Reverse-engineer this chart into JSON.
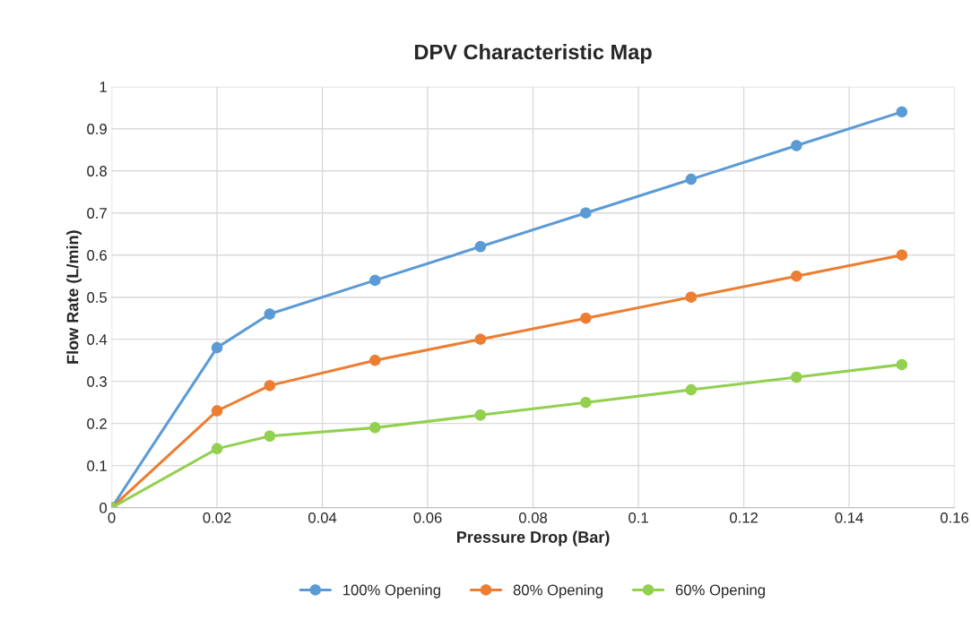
{
  "chart_data": {
    "type": "line",
    "title": "DPV Characteristic Map",
    "xlabel": "Pressure Drop (Bar)",
    "ylabel": "Flow Rate (L/min)",
    "x": [
      0,
      0.02,
      0.03,
      0.05,
      0.07,
      0.09,
      0.11,
      0.13,
      0.15
    ],
    "series": [
      {
        "name": "100% Opening",
        "color": "#5b9bd5",
        "values": [
          0,
          0.38,
          0.46,
          0.54,
          0.62,
          0.7,
          0.78,
          0.86,
          0.94
        ]
      },
      {
        "name": "80% Opening",
        "color": "#ed7d31",
        "values": [
          0,
          0.23,
          0.29,
          0.35,
          0.4,
          0.45,
          0.5,
          0.55,
          0.6
        ]
      },
      {
        "name": "60% Opening",
        "color": "#92d050",
        "values": [
          0,
          0.14,
          0.17,
          0.19,
          0.22,
          0.25,
          0.28,
          0.31,
          0.34
        ]
      }
    ],
    "xlim": [
      0,
      0.16
    ],
    "xticks": [
      0,
      0.02,
      0.04,
      0.06,
      0.08,
      0.1,
      0.12,
      0.14,
      0.16
    ],
    "ylim": [
      0,
      1
    ],
    "yticks": [
      0,
      0.1,
      0.2,
      0.3,
      0.4,
      0.5,
      0.6,
      0.7,
      0.8,
      0.9,
      1
    ],
    "grid": true,
    "legend": "bottom",
    "marker": "circle",
    "line_style": "solid"
  }
}
